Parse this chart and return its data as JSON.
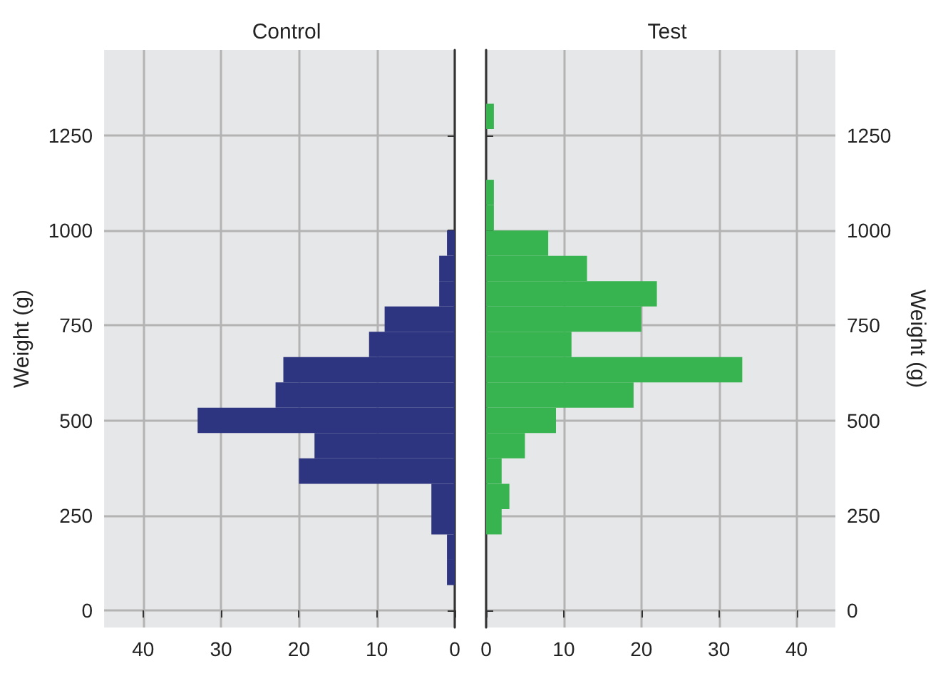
{
  "chart_data": [
    {
      "type": "histogram",
      "title": "Control",
      "ylabel": "Weight (g)",
      "orientation": "horizontal",
      "color": "#2e3580",
      "bins": [
        66.67,
        133.33,
        200,
        266.67,
        333.33,
        400,
        466.67,
        533.33,
        600,
        666.67,
        733.33,
        800,
        866.67,
        933.33,
        1000
      ],
      "values": [
        1,
        1,
        3,
        3,
        20,
        18,
        33,
        23,
        22,
        11,
        9,
        2,
        2,
        1
      ],
      "xlim": [
        45,
        0
      ],
      "xticks": [
        0,
        10,
        20,
        30,
        40
      ],
      "ylim": [
        -45,
        1475
      ],
      "yticks": [
        0,
        250,
        500,
        750,
        1000,
        1250
      ],
      "grid": true
    },
    {
      "type": "histogram",
      "title": "Test",
      "ylabel": "Weight (g)",
      "orientation": "horizontal",
      "color": "#37b34f",
      "bins": [
        200,
        266.67,
        333.33,
        400,
        466.67,
        533.33,
        600,
        666.67,
        733.33,
        800,
        866.67,
        933.33,
        1000,
        1066.67,
        1133.33,
        1200,
        1266.67,
        1333.33
      ],
      "values": [
        2,
        3,
        2,
        5,
        9,
        19,
        33,
        11,
        20,
        22,
        13,
        8,
        1,
        1,
        0,
        0,
        1
      ],
      "xlim": [
        0,
        45
      ],
      "xticks": [
        0,
        10,
        20,
        30,
        40
      ],
      "ylim": [
        -45,
        1475
      ],
      "yticks": [
        0,
        250,
        500,
        750,
        1000,
        1250
      ],
      "grid": true
    }
  ]
}
